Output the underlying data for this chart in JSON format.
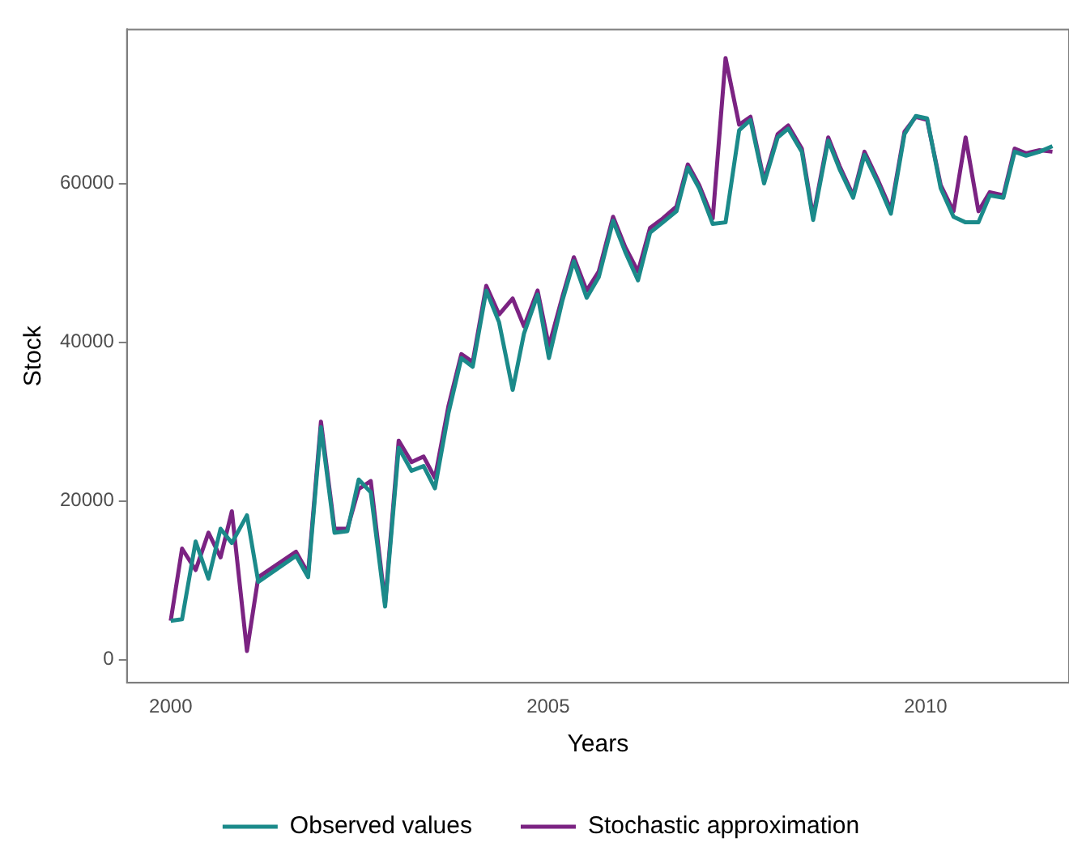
{
  "chart_data": {
    "type": "line",
    "xlabel": "Years",
    "ylabel": "Stock",
    "x": [
      2000.0,
      2000.15,
      2000.33,
      2000.5,
      2000.66,
      2000.81,
      2001.01,
      2001.16,
      2001.66,
      2001.82,
      2001.99,
      2002.17,
      2002.34,
      2002.49,
      2002.65,
      2002.84,
      2003.02,
      2003.19,
      2003.35,
      2003.5,
      2003.68,
      2003.85,
      2004.0,
      2004.18,
      2004.35,
      2004.53,
      2004.68,
      2004.86,
      2005.01,
      2005.19,
      2005.34,
      2005.51,
      2005.67,
      2005.86,
      2006.02,
      2006.19,
      2006.35,
      2006.52,
      2006.7,
      2006.85,
      2007.0,
      2007.18,
      2007.35,
      2007.53,
      2007.68,
      2007.86,
      2008.04,
      2008.18,
      2008.36,
      2008.51,
      2008.71,
      2008.86,
      2009.04,
      2009.19,
      2009.37,
      2009.54,
      2009.72,
      2009.87,
      2010.02,
      2010.2,
      2010.37,
      2010.53,
      2010.7,
      2010.85,
      2011.03,
      2011.18,
      2011.33,
      2011.51,
      2011.68
    ],
    "series": [
      {
        "name": "Observed values",
        "color": "#1b8a8a",
        "values": [
          4900,
          5100,
          14900,
          10200,
          16500,
          14700,
          18200,
          9800,
          13100,
          10400,
          29300,
          16000,
          16200,
          22700,
          21100,
          6700,
          26700,
          23800,
          24400,
          21600,
          31100,
          38000,
          36900,
          46500,
          42500,
          34000,
          41100,
          46000,
          38000,
          45300,
          50200,
          45600,
          48200,
          55300,
          51400,
          47800,
          53800,
          55100,
          56500,
          62000,
          59400,
          54900,
          55100,
          66700,
          68000,
          60000,
          65800,
          66900,
          64000,
          55400,
          65400,
          61800,
          58200,
          63600,
          60000,
          56200,
          66200,
          68500,
          68200,
          59400,
          55800,
          55100,
          55100,
          58500,
          58200,
          64000,
          63500,
          64000,
          64700
        ]
      },
      {
        "name": "Stochastic approximation",
        "color": "#7b2382",
        "values": [
          4900,
          14000,
          11300,
          16000,
          12900,
          18700,
          1100,
          10400,
          13600,
          10900,
          30000,
          16500,
          16500,
          21500,
          22500,
          7100,
          27600,
          24900,
          25600,
          22900,
          32000,
          38500,
          37500,
          47100,
          43500,
          45500,
          42000,
          46500,
          39500,
          45800,
          50700,
          46500,
          48900,
          55800,
          52000,
          48900,
          54400,
          55600,
          57100,
          62400,
          59800,
          55600,
          75800,
          67400,
          68400,
          60400,
          66200,
          67300,
          64400,
          55800,
          65800,
          62200,
          58500,
          64000,
          60400,
          56700,
          66500,
          68400,
          68000,
          59800,
          56500,
          65800,
          56500,
          58900,
          58500,
          64400,
          63800,
          64200,
          64000
        ]
      }
    ],
    "xlim": [
      1999.42,
      2011.9
    ],
    "xticks": [
      2000,
      2005,
      2010
    ],
    "ylim": [
      -2900,
      79400
    ],
    "yticks": [
      0,
      20000,
      40000,
      60000
    ],
    "grid": false,
    "legend": "bottom",
    "marker": "none",
    "line_style": "solid"
  }
}
